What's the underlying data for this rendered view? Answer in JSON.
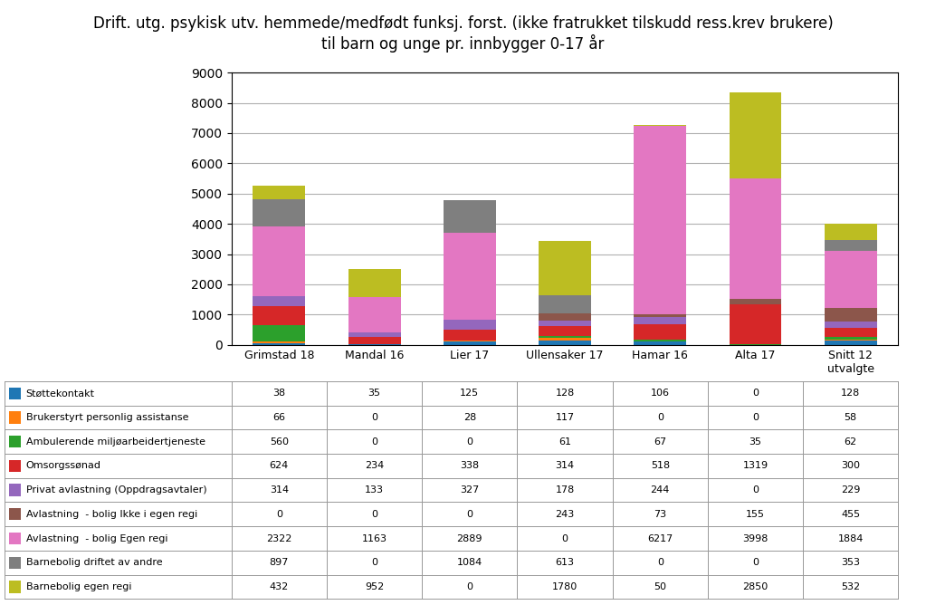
{
  "chart_data": {
    "type": "bar",
    "stacked": true,
    "title": "Drift. utg. psykisk utv. hemmede/medfødt funksj. forst. (ikke fratrukket tilskudd ress.krev brukere)\ntil barn og unge pr. innbygger 0-17 år",
    "categories": [
      "Grimstad 18",
      "Mandal 16",
      "Lier 17",
      "Ullensaker 17",
      "Hamar 16",
      "Alta 17",
      "Snitt 12\nutvalgte"
    ],
    "series": [
      {
        "name": "Støttekontakt",
        "values": [
          38,
          35,
          125,
          128,
          106,
          0,
          128
        ]
      },
      {
        "name": "Brukerstyrt personlig assistanse",
        "values": [
          66,
          0,
          28,
          117,
          0,
          0,
          58
        ]
      },
      {
        "name": "Ambulerende miljøarbeidertjeneste",
        "values": [
          560,
          0,
          0,
          61,
          67,
          35,
          62
        ]
      },
      {
        "name": "Omsorgssønad",
        "values": [
          624,
          234,
          338,
          314,
          518,
          1319,
          300
        ]
      },
      {
        "name": "Privat avlastning (Oppdragsavtaler)",
        "values": [
          314,
          133,
          327,
          178,
          244,
          0,
          229
        ]
      },
      {
        "name": "Avlastning  - bolig Ikke i egen regi",
        "values": [
          0,
          0,
          0,
          243,
          73,
          155,
          455
        ]
      },
      {
        "name": "Avlastning  - bolig Egen regi",
        "values": [
          2322,
          1163,
          2889,
          0,
          6217,
          3998,
          1884
        ]
      },
      {
        "name": "Barnebolig driftet av andre",
        "values": [
          897,
          0,
          1084,
          613,
          0,
          0,
          353
        ]
      },
      {
        "name": "Barnebolig egen regi",
        "values": [
          432,
          952,
          0,
          1780,
          50,
          2850,
          532
        ]
      }
    ],
    "ylim": [
      0,
      9000
    ],
    "yticks": [
      0,
      1000,
      2000,
      3000,
      4000,
      5000,
      6000,
      7000,
      8000,
      9000
    ],
    "grid": true
  }
}
